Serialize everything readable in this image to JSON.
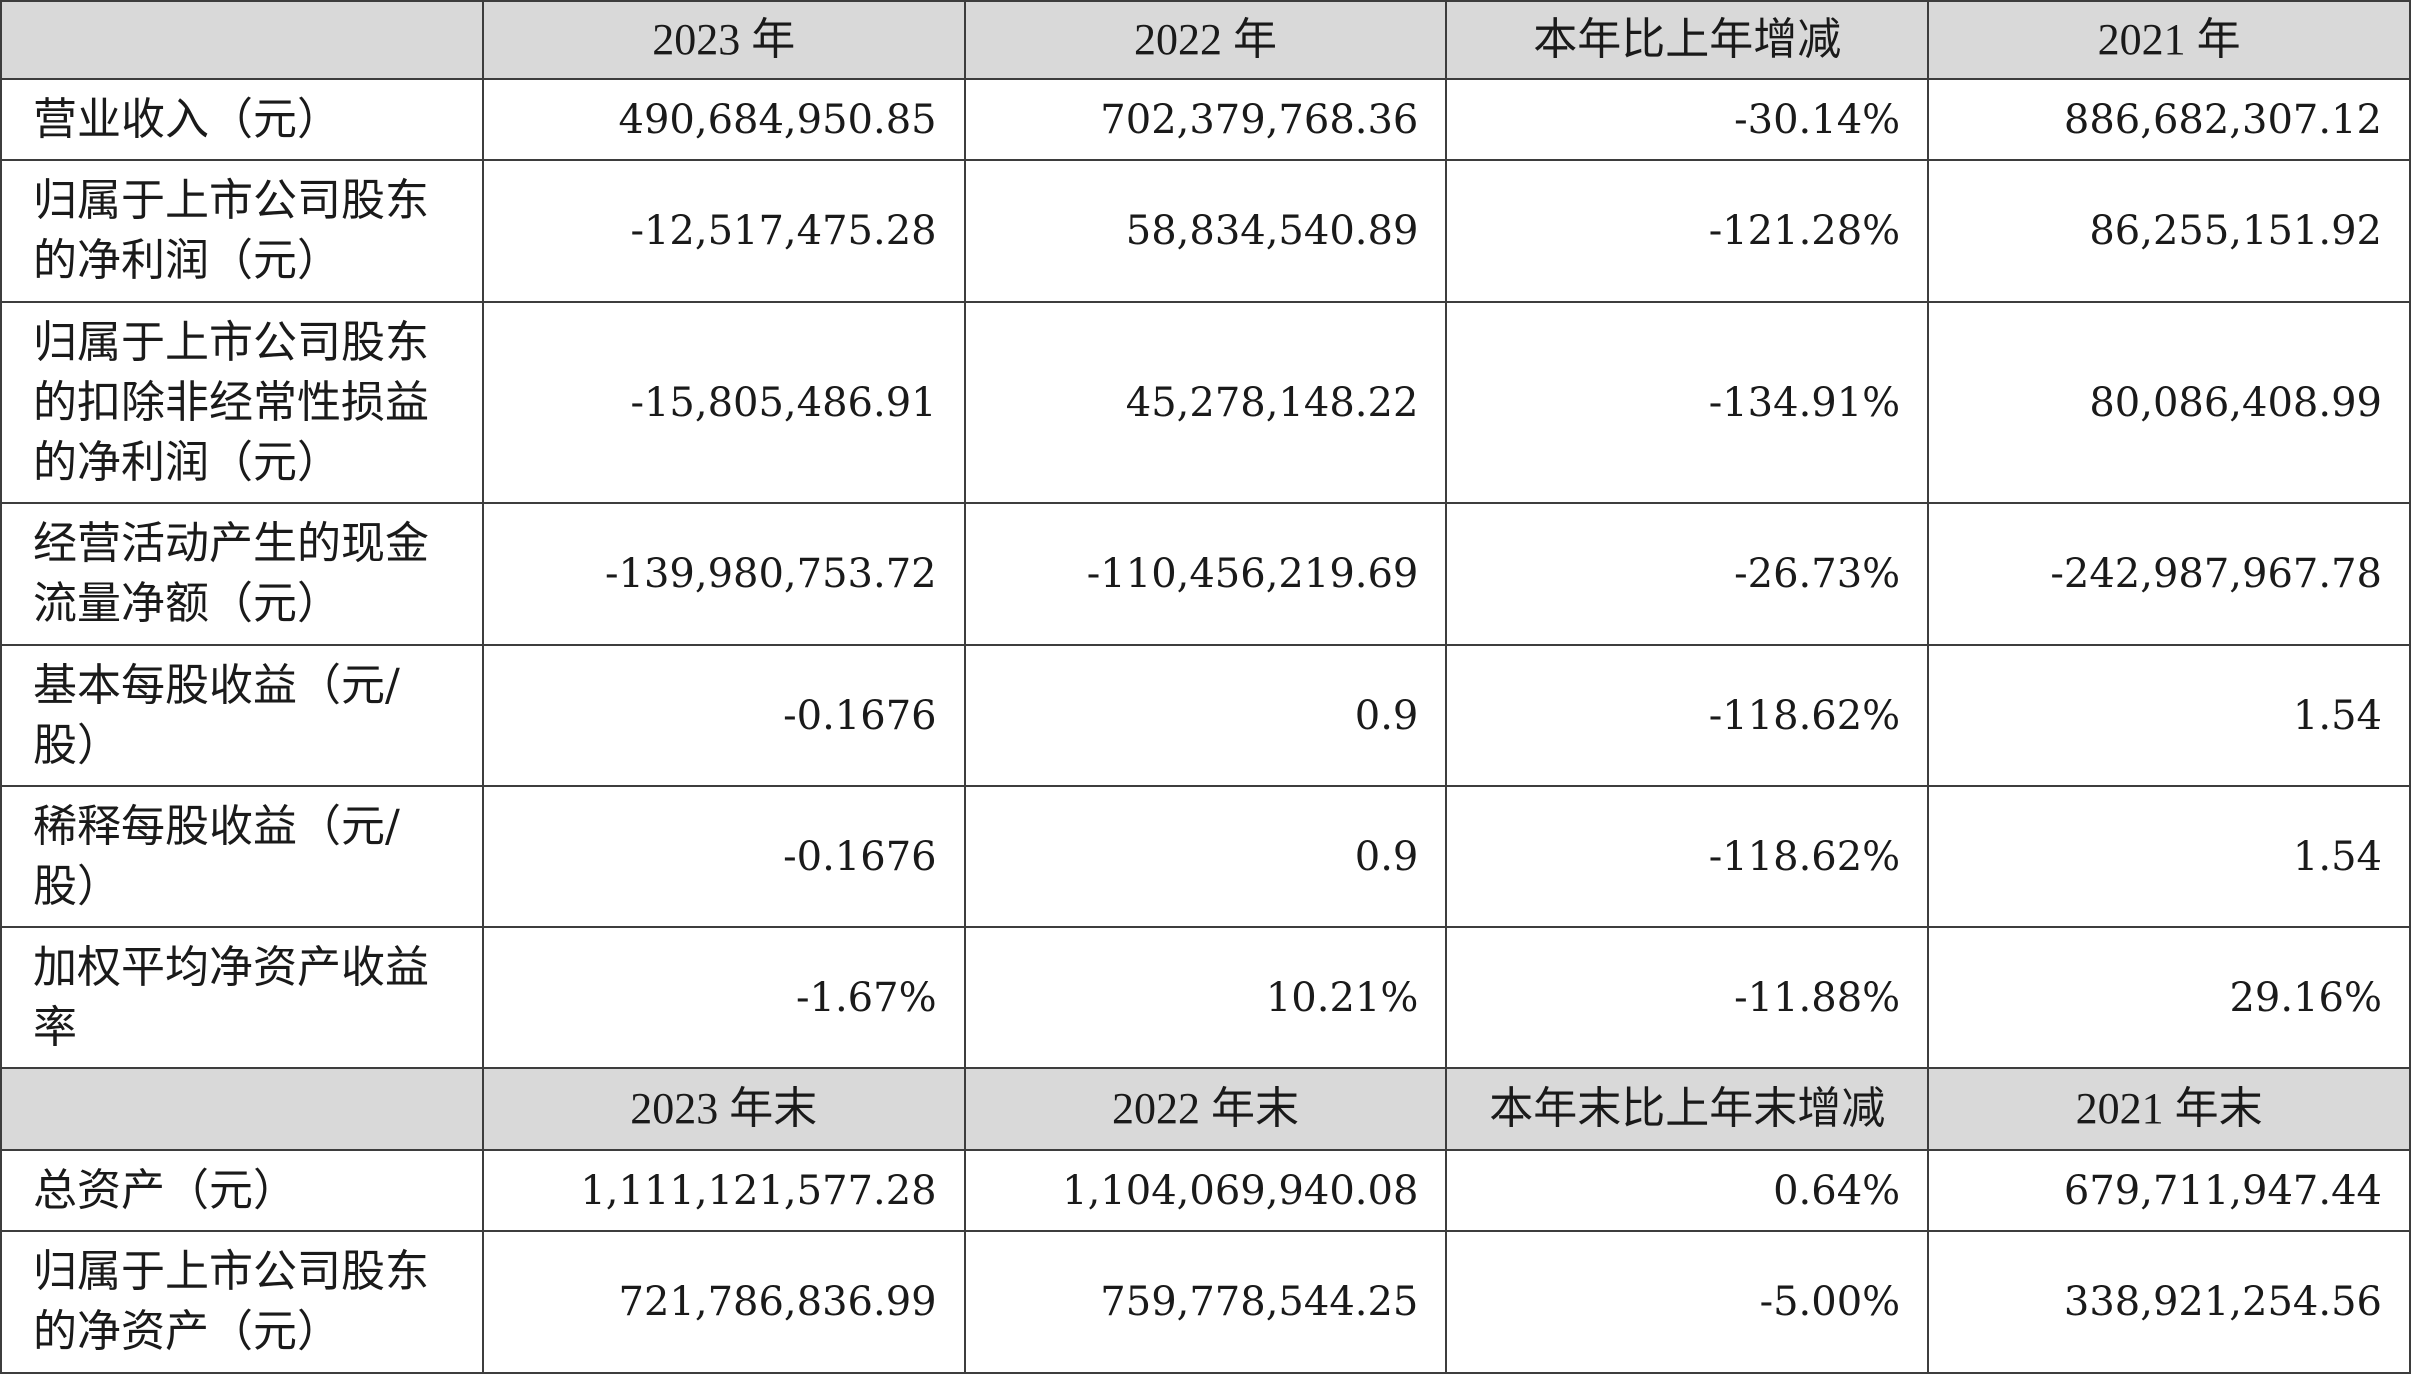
{
  "colors": {
    "header_bg": "#d9d9d9",
    "border": "#3d3d3d",
    "text": "#1a1a1a"
  },
  "annual_header": {
    "y2023": "2023 年",
    "y2022": "2022 年",
    "change": "本年比上年增减",
    "y2021": "2021 年"
  },
  "annual_rows": [
    {
      "label": "营业收入（元）",
      "y2023": "490,684,950.85",
      "y2022": "702,379,768.36",
      "change": "-30.14%",
      "y2021": "886,682,307.12"
    },
    {
      "label": "归属于上市公司股东的净利润（元）",
      "y2023": "-12,517,475.28",
      "y2022": "58,834,540.89",
      "change": "-121.28%",
      "y2021": "86,255,151.92"
    },
    {
      "label": "归属于上市公司股东的扣除非经常性损益的净利润（元）",
      "y2023": "-15,805,486.91",
      "y2022": "45,278,148.22",
      "change": "-134.91%",
      "y2021": "80,086,408.99"
    },
    {
      "label": "经营活动产生的现金流量净额（元）",
      "y2023": "-139,980,753.72",
      "y2022": "-110,456,219.69",
      "change": "-26.73%",
      "y2021": "-242,987,967.78"
    },
    {
      "label": "基本每股收益（元/股）",
      "y2023": "-0.1676",
      "y2022": "0.9",
      "change": "-118.62%",
      "y2021": "1.54"
    },
    {
      "label": "稀释每股收益（元/股）",
      "y2023": "-0.1676",
      "y2022": "0.9",
      "change": "-118.62%",
      "y2021": "1.54"
    },
    {
      "label": "加权平均净资产收益率",
      "y2023": "-1.67%",
      "y2022": "10.21%",
      "change": "-11.88%",
      "y2021": "29.16%"
    }
  ],
  "yearend_header": {
    "y2023": "2023 年末",
    "y2022": "2022 年末",
    "change": "本年末比上年末增减",
    "y2021": "2021 年末"
  },
  "yearend_rows": [
    {
      "label": "总资产（元）",
      "y2023": "1,111,121,577.28",
      "y2022": "1,104,069,940.08",
      "change": "0.64%",
      "y2021": "679,711,947.44"
    },
    {
      "label": "归属于上市公司股东的净资产（元）",
      "y2023": "721,786,836.99",
      "y2022": "759,778,544.25",
      "change": "-5.00%",
      "y2021": "338,921,254.56"
    }
  ]
}
